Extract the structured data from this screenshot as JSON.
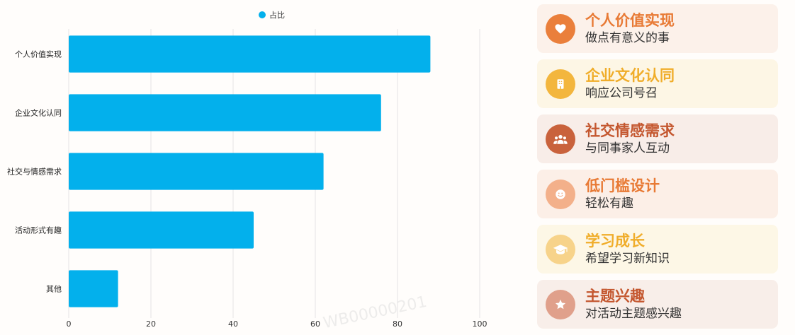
{
  "chart_data": {
    "type": "bar",
    "orientation": "horizontal",
    "legend": {
      "position": "top-center"
    },
    "categories": [
      "个人价值实现",
      "企业文化认同",
      "社交与情感需求",
      "活动形式有趣",
      "其他"
    ],
    "series": [
      {
        "name": "占比",
        "color": "#03b0ec",
        "values": [
          88,
          76,
          62,
          45,
          12
        ]
      }
    ],
    "xlim": [
      0,
      100
    ],
    "xticks": [
      0,
      20,
      40,
      60,
      80,
      100
    ],
    "grid": true
  },
  "cards": [
    {
      "title": "个人价值实现",
      "subtitle": "做点有意义的事",
      "icon": "heart-icon",
      "bg": "#fcf1ea",
      "accent": "#ea7f3b",
      "title_color": "#e87a35"
    },
    {
      "title": "企业文化认同",
      "subtitle": "响应公司号召",
      "icon": "building-icon",
      "bg": "#fdf6e5",
      "accent": "#f3b63d",
      "title_color": "#f0ad2a"
    },
    {
      "title": "社交情感需求",
      "subtitle": "与同事家人互动",
      "icon": "group-icon",
      "bg": "#f8ede8",
      "accent": "#c9623c",
      "title_color": "#c4572f"
    },
    {
      "title": "低门槛设计",
      "subtitle": "轻松有趣",
      "icon": "smile-icon",
      "bg": "#fcefe7",
      "accent": "#f3b08a",
      "title_color": "#e87a35"
    },
    {
      "title": "学习成长",
      "subtitle": "希望学习新知识",
      "icon": "graduation-cap-icon",
      "bg": "#fdf7e6",
      "accent": "#f7d38a",
      "title_color": "#f0ad2a"
    },
    {
      "title": "主题兴趣",
      "subtitle": "对活动主题感兴趣",
      "icon": "star-icon",
      "bg": "#f8eee9",
      "accent": "#e0a08b",
      "title_color": "#c4572f"
    }
  ],
  "watermark": "WB00000201"
}
